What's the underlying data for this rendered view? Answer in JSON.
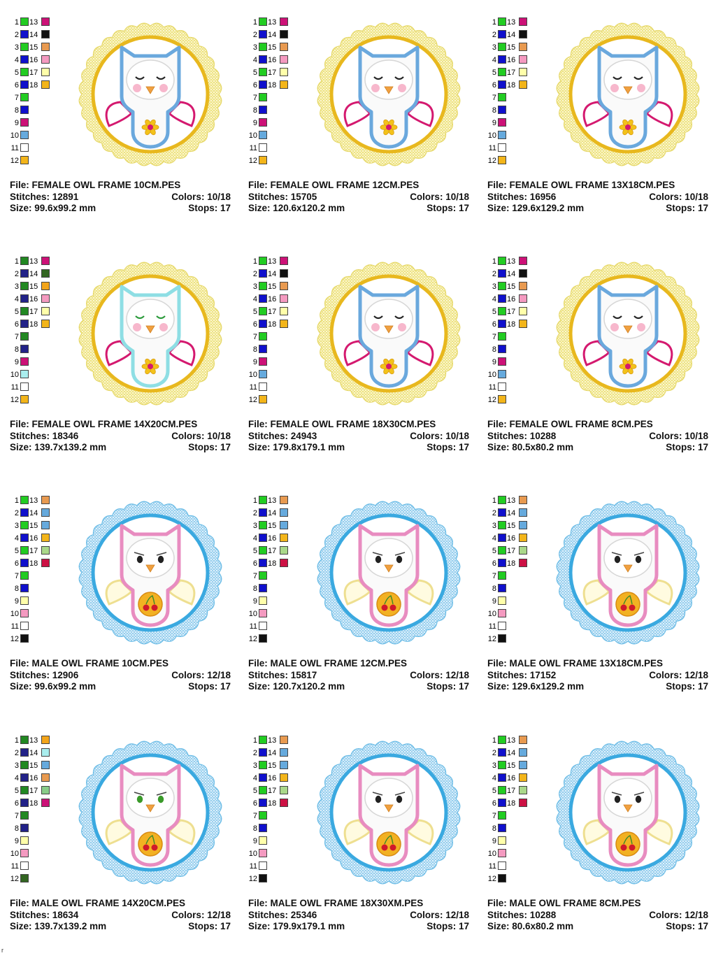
{
  "labels": {
    "file": "File: ",
    "stitches": "Stitches: ",
    "colors": "Colors: ",
    "size": "Size: ",
    "stops": "Stops: "
  },
  "stray_mark": "r",
  "designs": [
    {
      "file": "FEMALE OWL FRAME 10CM.PES",
      "stitches": "12891",
      "colors": "10/18",
      "size": "99.6x99.2 mm",
      "stops": "17",
      "style": "female",
      "palette": [
        "#22cc22",
        "#1010cc",
        "#22cc22",
        "#1010cc",
        "#22cc22",
        "#1010cc",
        "#22cc22",
        "#1010cc",
        "#cc1177",
        "#66aadd",
        "#ffffff",
        "#f3b51a",
        "#cc1177",
        "#111111",
        "#e89a50",
        "#f49ac0",
        "#ffffaa",
        "#f3b51a"
      ]
    },
    {
      "file": "FEMALE OWL FRAME 12CM.PES",
      "stitches": "15705",
      "colors": "10/18",
      "size": "120.6x120.2 mm",
      "stops": "17",
      "style": "female",
      "palette": [
        "#22cc22",
        "#1010cc",
        "#22cc22",
        "#1010cc",
        "#22cc22",
        "#1010cc",
        "#22cc22",
        "#1010cc",
        "#cc1177",
        "#66aadd",
        "#ffffff",
        "#f3b51a",
        "#cc1177",
        "#111111",
        "#e89a50",
        "#f49ac0",
        "#ffffaa",
        "#f3b51a"
      ]
    },
    {
      "file": "FEMALE OWL FRAME 13X18CM.PES",
      "stitches": "16956",
      "colors": "10/18",
      "size": "129.6x129.2 mm",
      "stops": "17",
      "style": "female",
      "palette": [
        "#22cc22",
        "#1010cc",
        "#22cc22",
        "#1010cc",
        "#22cc22",
        "#1010cc",
        "#22cc22",
        "#1010cc",
        "#cc1177",
        "#66aadd",
        "#ffffff",
        "#f3b51a",
        "#cc1177",
        "#111111",
        "#e89a50",
        "#f49ac0",
        "#ffffaa",
        "#f3b51a"
      ]
    },
    {
      "file": "FEMALE OWL FRAME 14X20CM.PES",
      "stitches": "18346",
      "colors": "10/18",
      "size": "139.7x139.2 mm",
      "stops": "17",
      "style": "female2",
      "palette": [
        "#228822",
        "#222288",
        "#228822",
        "#222288",
        "#228822",
        "#222288",
        "#228822",
        "#222288",
        "#cc1177",
        "#aaeeee",
        "#ffffff",
        "#f3b51a",
        "#cc1177",
        "#336622",
        "#f3a51a",
        "#f49ac0",
        "#ffffaa",
        "#f3b51a"
      ]
    },
    {
      "file": "FEMALE OWL FRAME 18X30CM.PES",
      "stitches": "24943",
      "colors": "10/18",
      "size": "179.8x179.1 mm",
      "stops": "17",
      "style": "female",
      "palette": [
        "#22cc22",
        "#1010cc",
        "#22cc22",
        "#1010cc",
        "#22cc22",
        "#1010cc",
        "#22cc22",
        "#1010cc",
        "#cc1177",
        "#66aadd",
        "#ffffff",
        "#f3b51a",
        "#cc1177",
        "#111111",
        "#e89a50",
        "#f49ac0",
        "#ffffaa",
        "#f3b51a"
      ]
    },
    {
      "file": "FEMALE OWL FRAME 8CM.PES",
      "stitches": "10288",
      "colors": "10/18",
      "size": "80.5x80.2 mm",
      "stops": "17",
      "style": "female",
      "palette": [
        "#22cc22",
        "#1010cc",
        "#22cc22",
        "#1010cc",
        "#22cc22",
        "#1010cc",
        "#22cc22",
        "#1010cc",
        "#cc1177",
        "#66aadd",
        "#ffffff",
        "#f3b51a",
        "#cc1177",
        "#111111",
        "#e89a50",
        "#f49ac0",
        "#ffffaa",
        "#f3b51a"
      ]
    },
    {
      "file": "MALE OWL FRAME 10CM.PES",
      "stitches": "12906",
      "colors": "12/18",
      "size": "99.6x99.2 mm",
      "stops": "17",
      "style": "male",
      "palette": [
        "#22cc22",
        "#1010cc",
        "#22cc22",
        "#1010cc",
        "#22cc22",
        "#1010cc",
        "#22cc22",
        "#1010cc",
        "#ffffaa",
        "#f49ac0",
        "#ffffff",
        "#111111",
        "#e89a50",
        "#66aadd",
        "#66aadd",
        "#f3b51a",
        "#aad88a",
        "#cc1144"
      ]
    },
    {
      "file": "MALE OWL FRAME 12CM.PES",
      "stitches": "15817",
      "colors": "12/18",
      "size": "120.7x120.2 mm",
      "stops": "17",
      "style": "male",
      "palette": [
        "#22cc22",
        "#1010cc",
        "#22cc22",
        "#1010cc",
        "#22cc22",
        "#1010cc",
        "#22cc22",
        "#1010cc",
        "#ffffaa",
        "#f49ac0",
        "#ffffff",
        "#111111",
        "#e89a50",
        "#66aadd",
        "#66aadd",
        "#f3b51a",
        "#aad88a",
        "#cc1144"
      ]
    },
    {
      "file": "MALE OWL FRAME 13X18CM.PES",
      "stitches": "17152",
      "colors": "12/18",
      "size": "129.6x129.2 mm",
      "stops": "17",
      "style": "male",
      "palette": [
        "#22cc22",
        "#1010cc",
        "#22cc22",
        "#1010cc",
        "#22cc22",
        "#1010cc",
        "#22cc22",
        "#1010cc",
        "#ffffaa",
        "#f49ac0",
        "#ffffff",
        "#111111",
        "#e89a50",
        "#66aadd",
        "#66aadd",
        "#f3b51a",
        "#aad88a",
        "#cc1144"
      ]
    },
    {
      "file": "MALE OWL FRAME 14X20CM.PES",
      "stitches": "18634",
      "colors": "12/18",
      "size": "139.7x139.2 mm",
      "stops": "17",
      "style": "male2",
      "palette": [
        "#228822",
        "#222288",
        "#228822",
        "#222288",
        "#228822",
        "#222288",
        "#228822",
        "#222288",
        "#ffffaa",
        "#f49ac0",
        "#ffffff",
        "#336622",
        "#f3a51a",
        "#aaeeee",
        "#66aadd",
        "#e89a50",
        "#88cc88",
        "#cc1177"
      ]
    },
    {
      "file": "MALE OWL FRAME 18X30XM.PES",
      "stitches": "25346",
      "colors": "12/18",
      "size": "179.9x179.1 mm",
      "stops": "17",
      "style": "male",
      "palette": [
        "#22cc22",
        "#1010cc",
        "#22cc22",
        "#1010cc",
        "#22cc22",
        "#1010cc",
        "#22cc22",
        "#1010cc",
        "#ffffaa",
        "#f49ac0",
        "#ffffff",
        "#111111",
        "#e89a50",
        "#66aadd",
        "#66aadd",
        "#f3b51a",
        "#aad88a",
        "#cc1144"
      ]
    },
    {
      "file": "MALE OWL FRAME 8CM.PES",
      "stitches": "10288",
      "colors": "12/18",
      "size": "80.6x80.2 mm",
      "stops": "17",
      "style": "male",
      "palette": [
        "#22cc22",
        "#1010cc",
        "#22cc22",
        "#1010cc",
        "#22cc22",
        "#1010cc",
        "#22cc22",
        "#1010cc",
        "#ffffaa",
        "#f49ac0",
        "#ffffff",
        "#111111",
        "#e89a50",
        "#66aadd",
        "#66aadd",
        "#f3b51a",
        "#aad88a",
        "#cc1144"
      ]
    }
  ]
}
